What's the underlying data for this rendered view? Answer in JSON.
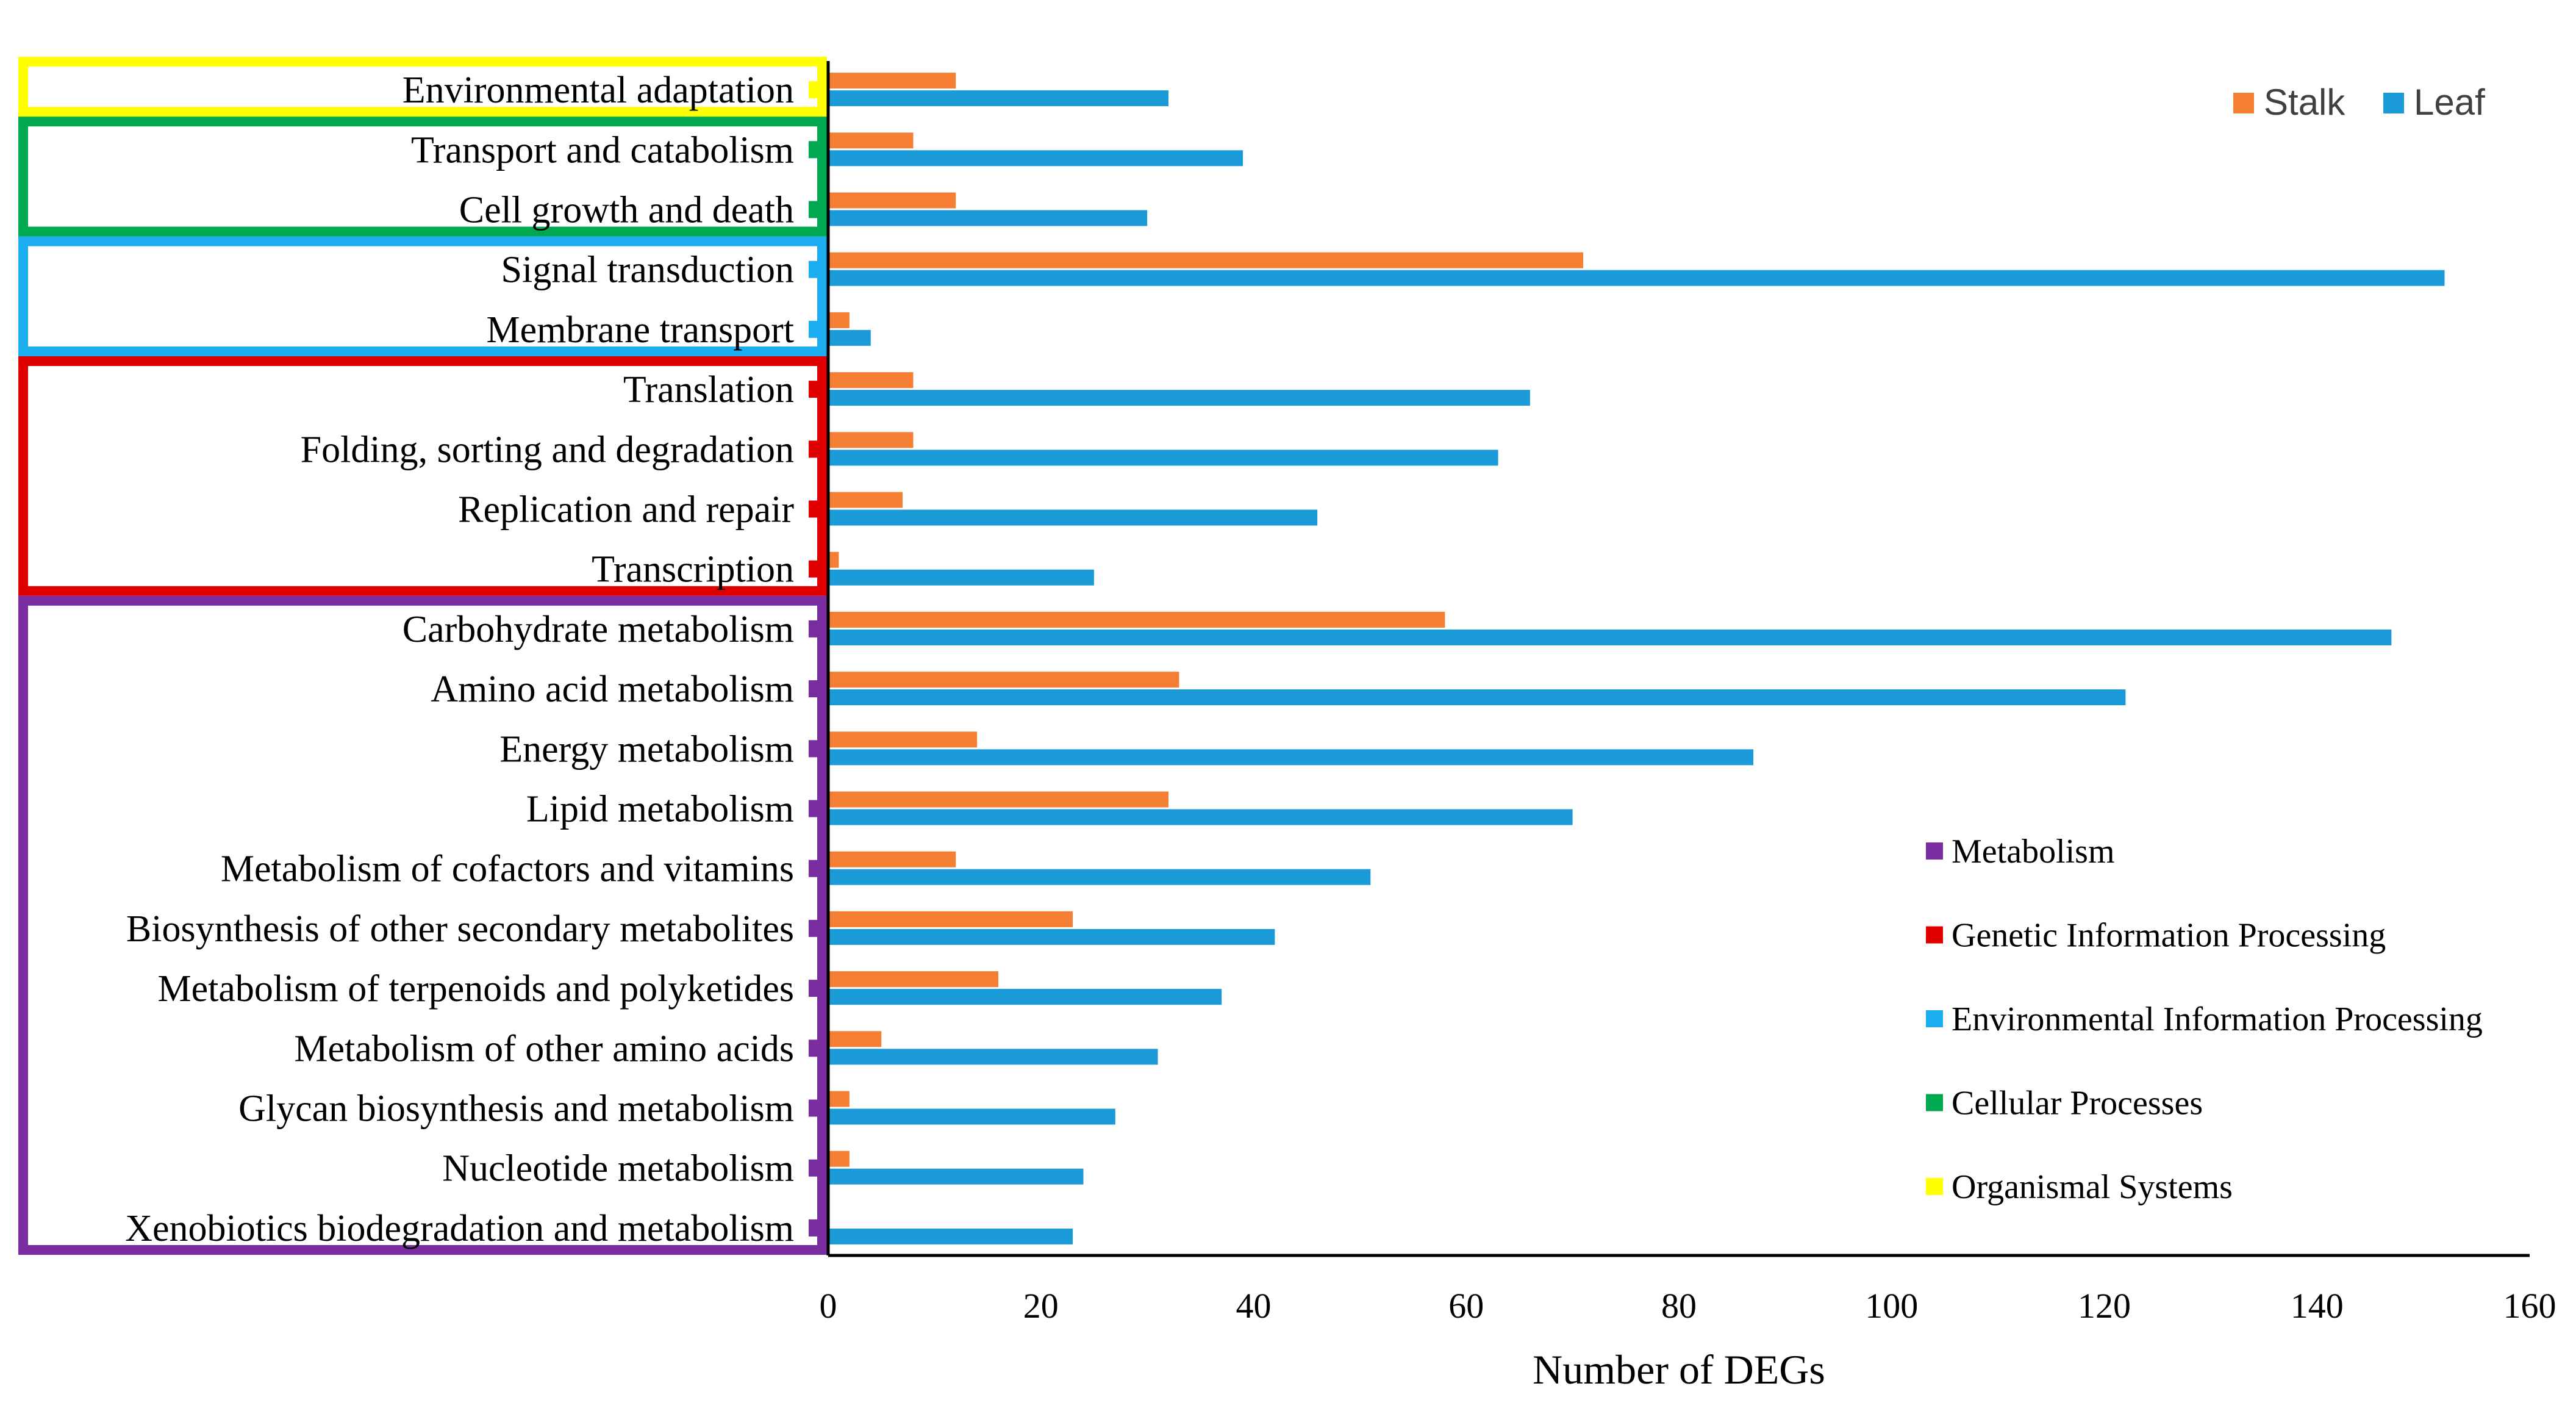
{
  "chart_data": {
    "type": "bar",
    "orientation": "horizontal",
    "title": "",
    "xlabel": "Number of DEGs",
    "ylabel": "",
    "xlim": [
      0,
      160
    ],
    "xticks": [
      0,
      20,
      40,
      60,
      80,
      100,
      120,
      140,
      160
    ],
    "categories": [
      "Environmental adaptation",
      "Transport and catabolism",
      "Cell growth and death",
      "Signal transduction",
      "Membrane transport",
      "Translation",
      "Folding, sorting and degradation",
      "Replication and repair",
      "Transcription",
      "Carbohydrate metabolism",
      "Amino acid metabolism",
      "Energy metabolism",
      "Lipid metabolism",
      "Metabolism of cofactors and vitamins",
      "Biosynthesis of other secondary metabolites",
      "Metabolism of terpenoids and polyketides",
      "Metabolism of other amino acids",
      "Glycan biosynthesis and metabolism",
      "Nucleotide metabolism",
      "Xenobiotics biodegradation and metabolism"
    ],
    "category_groups": [
      4,
      3,
      3,
      2,
      2,
      1,
      1,
      1,
      1,
      0,
      0,
      0,
      0,
      0,
      0,
      0,
      0,
      0,
      0,
      0
    ],
    "series": [
      {
        "name": "Stalk",
        "color": "#F47F34",
        "values": [
          12,
          8,
          12,
          71,
          2,
          8,
          8,
          7,
          1,
          58,
          33,
          14,
          32,
          12,
          23,
          16,
          5,
          2,
          2,
          0
        ]
      },
      {
        "name": "Leaf",
        "color": "#1A9BD7",
        "values": [
          32,
          39,
          30,
          152,
          4,
          66,
          63,
          46,
          25,
          147,
          122,
          87,
          70,
          51,
          42,
          37,
          31,
          27,
          24,
          23
        ]
      }
    ],
    "groups": [
      {
        "name": "Metabolism",
        "color": "#7A2DA0"
      },
      {
        "name": "Genetic Information Processing",
        "color": "#E00000"
      },
      {
        "name": "Environmental Information Processing",
        "color": "#1BADEE"
      },
      {
        "name": "Cellular Processes",
        "color": "#00A850"
      },
      {
        "name": "Organismal Systems",
        "color": "#FFFF00"
      }
    ],
    "series_legend_position": "top-right",
    "group_legend_position": "bottom-right",
    "grid": false
  }
}
